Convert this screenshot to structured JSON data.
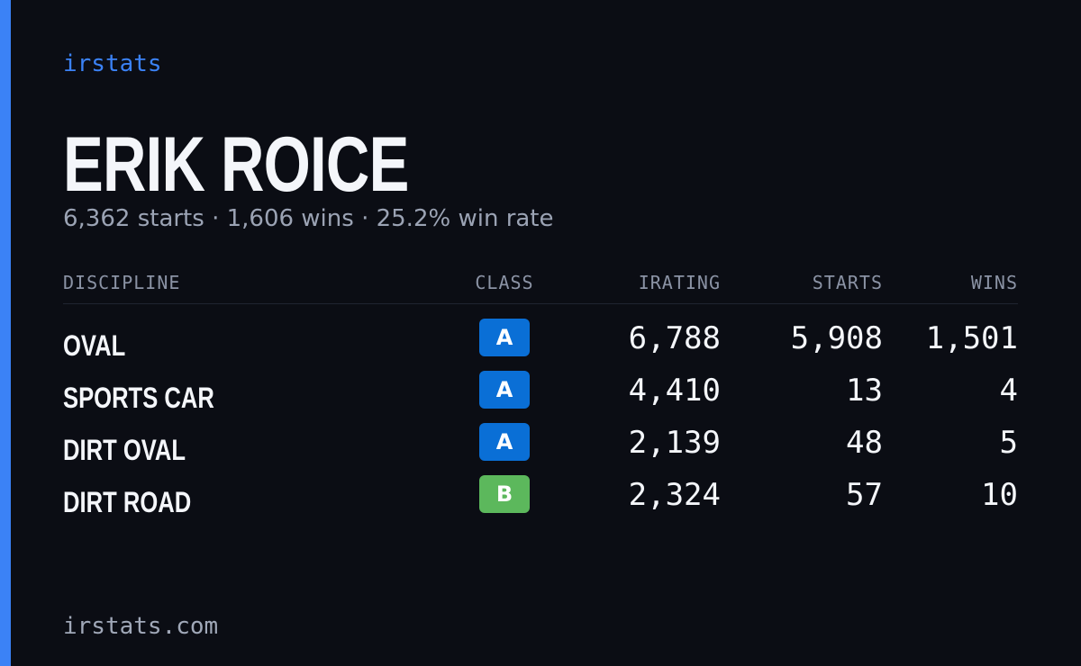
{
  "brand": "irstats",
  "driver": {
    "name": "ERIK ROICE",
    "summary": "6,362 starts · 1,606 wins · 25.2% win rate"
  },
  "table": {
    "headers": [
      "DISCIPLINE",
      "CLASS",
      "IRATING",
      "STARTS",
      "WINS"
    ],
    "rows": [
      [
        "OVAL",
        "A",
        "6,788",
        "5,908",
        "1,501"
      ],
      [
        "SPORTS CAR",
        "A",
        "4,410",
        "13",
        "4"
      ],
      [
        "DIRT OVAL",
        "A",
        "2,139",
        "48",
        "5"
      ],
      [
        "DIRT ROAD",
        "B",
        "2,324",
        "57",
        "10"
      ]
    ]
  },
  "footer": "irstats.com"
}
